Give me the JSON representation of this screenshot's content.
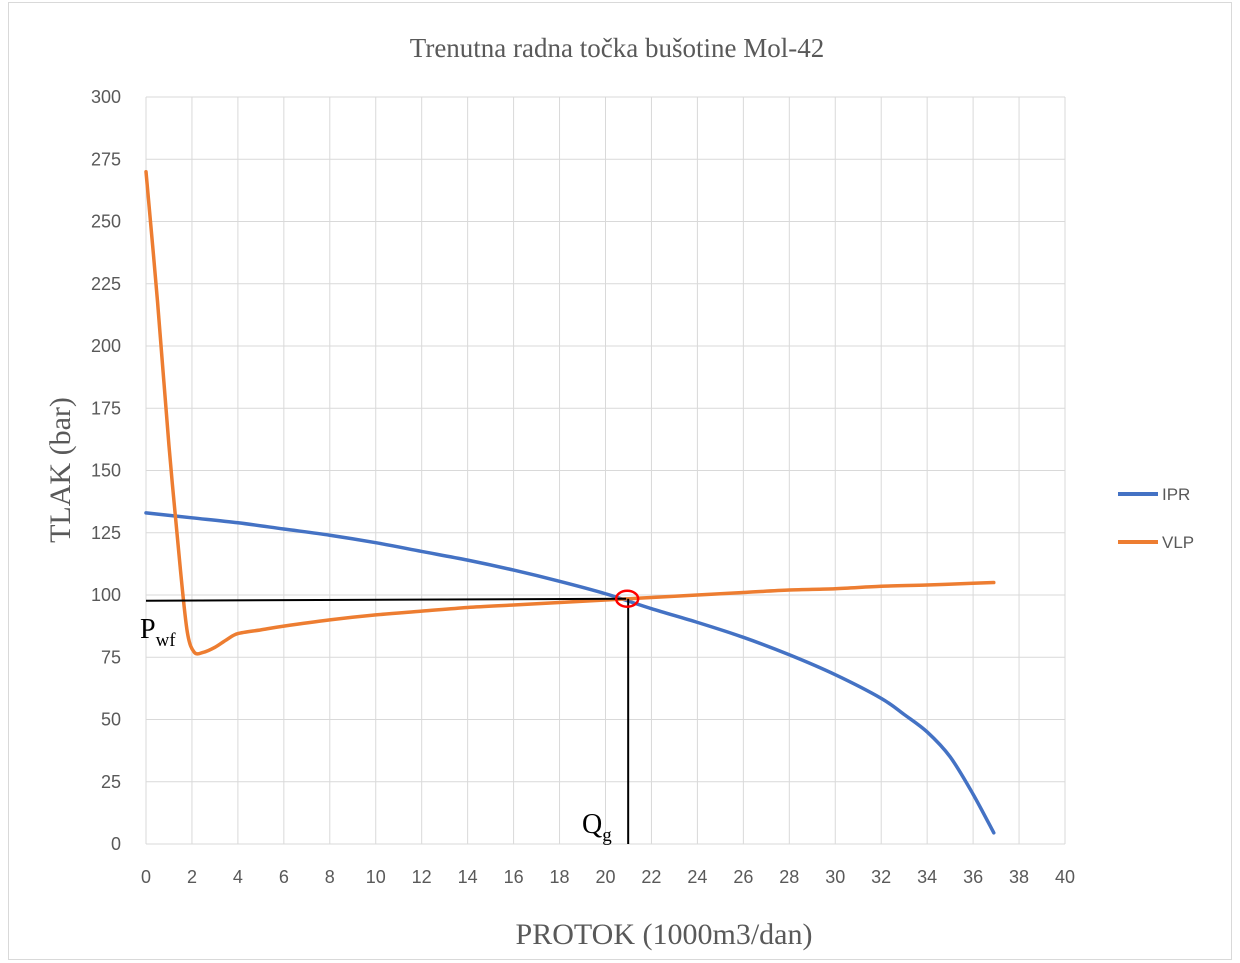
{
  "chart_data": {
    "type": "line",
    "title": "Trenutna radna točka bušotine Mol-42",
    "xlabel": "PROTOK (1000m3/dan)",
    "ylabel": "TLAK (bar)",
    "xlim": [
      0,
      40
    ],
    "ylim": [
      0,
      300
    ],
    "xticks": [
      0,
      2,
      4,
      6,
      8,
      10,
      12,
      14,
      16,
      18,
      20,
      22,
      24,
      26,
      28,
      30,
      32,
      34,
      36,
      38,
      40
    ],
    "yticks": [
      0,
      25,
      50,
      75,
      100,
      125,
      150,
      175,
      200,
      225,
      250,
      275,
      300
    ],
    "grid": true,
    "legend_position": "right",
    "series": [
      {
        "name": "IPR",
        "color": "#4472C4",
        "points": [
          [
            0,
            133
          ],
          [
            2,
            131
          ],
          [
            4,
            129
          ],
          [
            6,
            126.5
          ],
          [
            8,
            124
          ],
          [
            10,
            121
          ],
          [
            12,
            117.5
          ],
          [
            14,
            114
          ],
          [
            16,
            110
          ],
          [
            18,
            105.5
          ],
          [
            20,
            100.5
          ],
          [
            22,
            94.5
          ],
          [
            24,
            89
          ],
          [
            26,
            83
          ],
          [
            28,
            76
          ],
          [
            30,
            68
          ],
          [
            32,
            58.5
          ],
          [
            33,
            52
          ],
          [
            34,
            45
          ],
          [
            35,
            35
          ],
          [
            36,
            20
          ],
          [
            36.9,
            4.5
          ]
        ]
      },
      {
        "name": "VLP",
        "color": "#ED7D31",
        "points": [
          [
            0,
            270
          ],
          [
            0.5,
            218
          ],
          [
            1,
            160
          ],
          [
            1.5,
            110
          ],
          [
            1.8,
            85
          ],
          [
            2.1,
            77
          ],
          [
            2.5,
            77
          ],
          [
            3,
            79
          ],
          [
            3.5,
            82
          ],
          [
            4,
            84.5
          ],
          [
            5,
            86
          ],
          [
            6,
            87.5
          ],
          [
            8,
            90
          ],
          [
            10,
            92
          ],
          [
            12,
            93.5
          ],
          [
            14,
            95
          ],
          [
            16,
            96
          ],
          [
            18,
            97
          ],
          [
            20,
            98
          ],
          [
            22,
            99
          ],
          [
            24,
            100
          ],
          [
            26,
            101
          ],
          [
            28,
            102
          ],
          [
            30,
            102.5
          ],
          [
            32,
            103.5
          ],
          [
            34,
            104
          ],
          [
            36,
            104.7
          ],
          [
            36.9,
            105
          ]
        ]
      }
    ],
    "operating_point": {
      "x": 20.9,
      "y": 98.5
    },
    "annotations": {
      "pwf_main": "P",
      "pwf_sub": "wf",
      "qg_main": "Q",
      "qg_sub": "g"
    },
    "colors": {
      "operating_circle": "#ff0000",
      "guide_lines": "#000000"
    }
  }
}
